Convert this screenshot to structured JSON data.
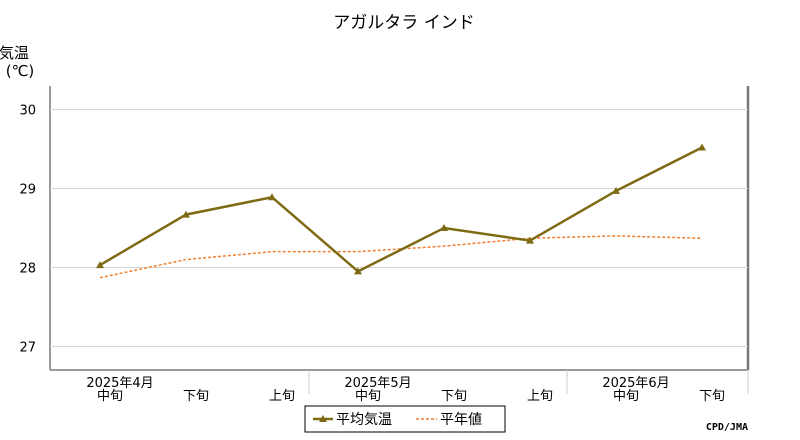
{
  "chart_data": {
    "type": "line",
    "title": "アガルタラ インド",
    "ylabel_line1": "気温",
    "ylabel_line2": "(℃)",
    "ylim": [
      26.7,
      30.3
    ],
    "yticks": [
      27,
      28,
      29,
      30
    ],
    "categories": [
      "2025年4月中旬",
      "2025年4月下旬",
      "2025年5月上旬",
      "2025年5月中旬",
      "2025年5月下旬",
      "2025年6月上旬",
      "2025年6月中旬",
      "2025年6月下旬"
    ],
    "xtick_period_labels": [
      "中旬",
      "下旬",
      "上旬",
      "中旬",
      "下旬",
      "上旬",
      "中旬",
      "下旬"
    ],
    "month_labels": [
      {
        "label": "2025年4月",
        "index": 0
      },
      {
        "label": "2025年5月",
        "index": 3
      },
      {
        "label": "2025年6月",
        "index": 6
      }
    ],
    "series": [
      {
        "name": "平均気温",
        "color": "#7f6a14",
        "style": "solid-triangle",
        "values": [
          28.03,
          28.67,
          28.89,
          27.95,
          28.5,
          28.34,
          28.97,
          29.52
        ]
      },
      {
        "name": "平年値",
        "color": "#f08030",
        "style": "dashed",
        "values": [
          27.87,
          28.1,
          28.2,
          28.2,
          28.27,
          28.37,
          28.4,
          28.37
        ]
      }
    ],
    "grid": true,
    "legend_position": "bottom-center"
  },
  "credit": "CPD/JMA"
}
